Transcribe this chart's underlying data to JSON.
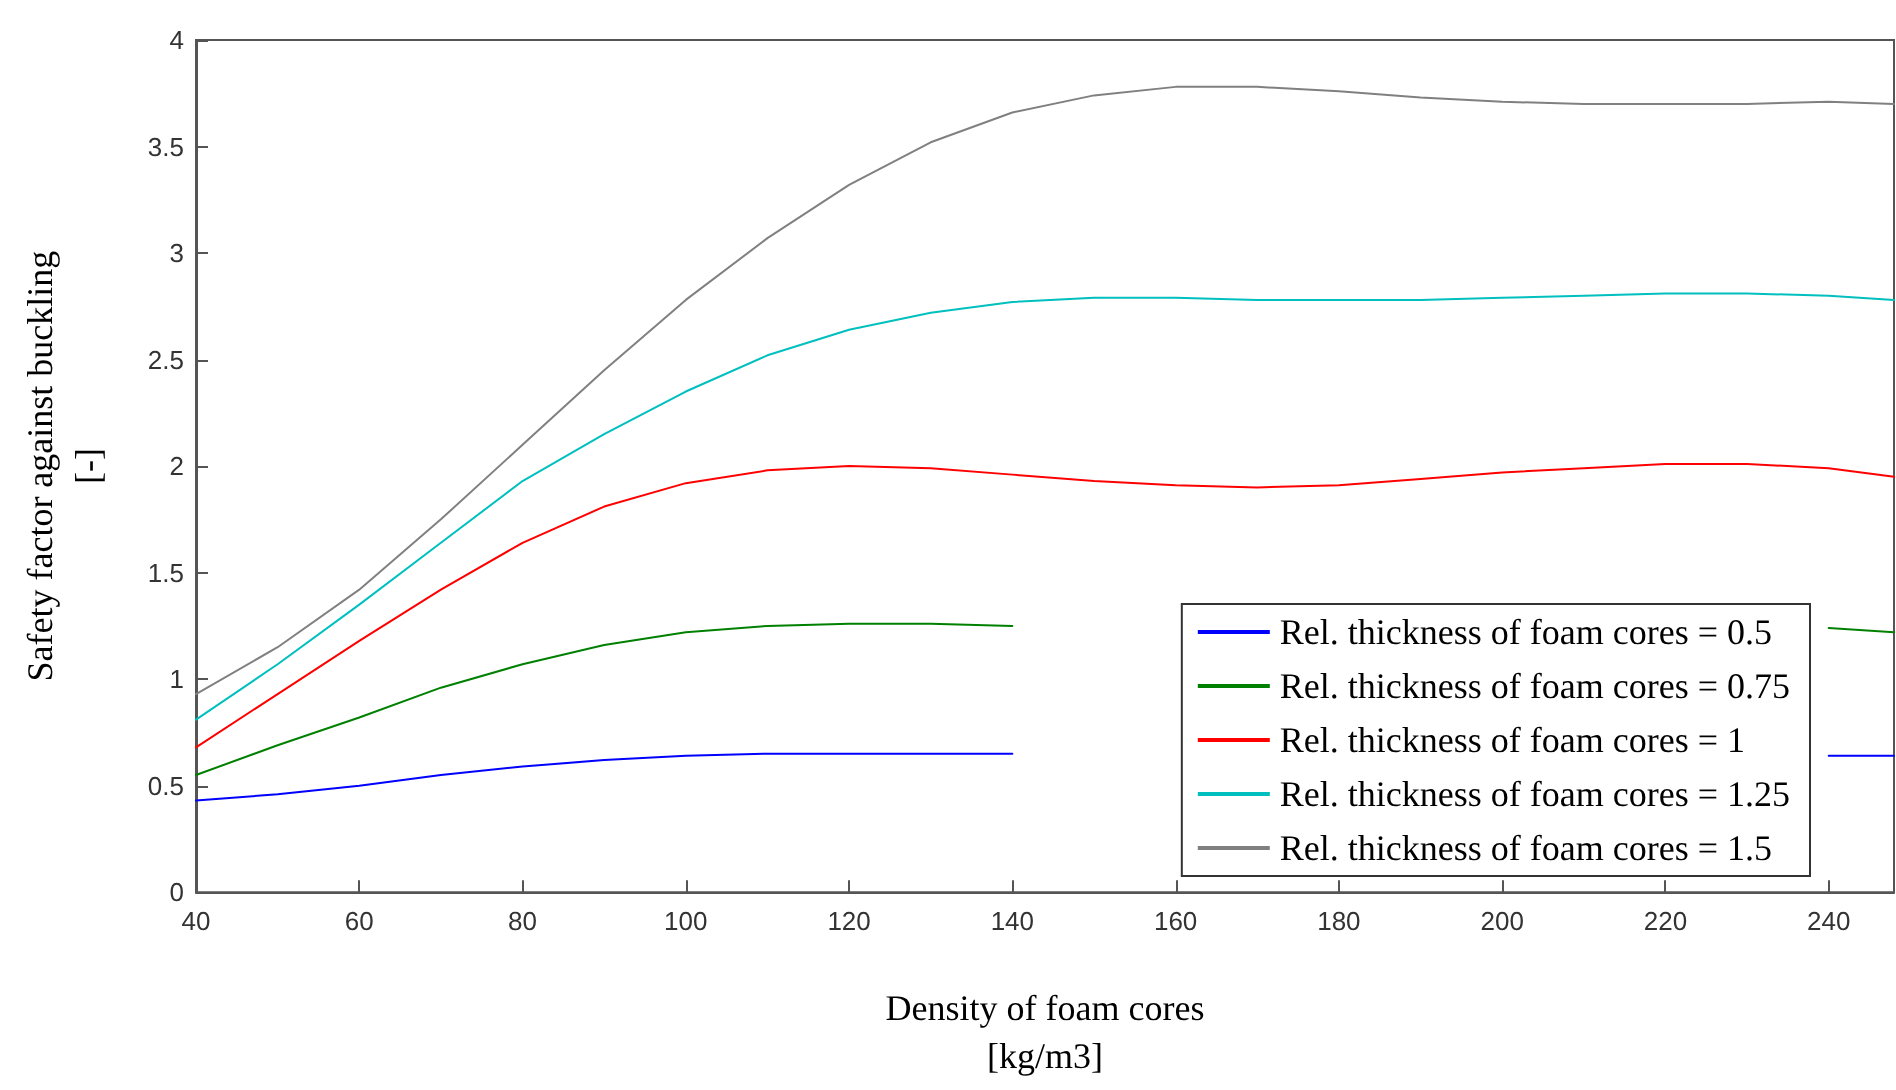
{
  "chart_data": {
    "type": "line",
    "xlabel": "Density of foam cores\n[kg/m3]",
    "ylabel": "Safety factor against buckling\n[-]",
    "x": [
      40,
      50,
      60,
      70,
      80,
      90,
      100,
      110,
      120,
      130,
      140,
      150,
      160,
      170,
      180,
      190,
      200,
      210,
      220,
      230,
      240,
      248
    ],
    "xlim": [
      40,
      248
    ],
    "xticks": [
      40,
      60,
      80,
      100,
      120,
      140,
      160,
      180,
      200,
      220,
      240
    ],
    "ylim": [
      0,
      4
    ],
    "yticks": [
      0,
      0.5,
      1,
      1.5,
      2,
      2.5,
      3,
      3.5,
      4
    ],
    "grid": false,
    "legend": "bottom right",
    "marker": "none",
    "line_style": "solid",
    "series": [
      {
        "name": "Rel. thickness of foam cores = 0.5",
        "color": "#0000ff",
        "values": [
          0.43,
          0.46,
          0.5,
          0.55,
          0.59,
          0.62,
          0.64,
          0.65,
          0.65,
          0.65,
          0.65,
          null,
          null,
          null,
          null,
          null,
          null,
          null,
          null,
          null,
          0.64,
          0.64
        ]
      },
      {
        "name": "Rel. thickness of foam cores = 0.75",
        "color": "#008000",
        "values": [
          0.55,
          0.69,
          0.82,
          0.96,
          1.07,
          1.16,
          1.22,
          1.25,
          1.26,
          1.26,
          1.25,
          null,
          null,
          null,
          null,
          null,
          null,
          null,
          null,
          null,
          1.24,
          1.22
        ]
      },
      {
        "name": "Rel. thickness of foam cores = 1",
        "color": "#ff0000",
        "values": [
          0.68,
          0.93,
          1.18,
          1.42,
          1.64,
          1.81,
          1.92,
          1.98,
          2.0,
          1.99,
          1.96,
          1.93,
          1.91,
          1.9,
          1.91,
          1.94,
          1.97,
          1.99,
          2.01,
          2.01,
          1.99,
          1.95
        ]
      },
      {
        "name": "Rel. thickness of foam cores = 1.25",
        "color": "#00bfbf",
        "values": [
          0.81,
          1.07,
          1.35,
          1.64,
          1.93,
          2.15,
          2.35,
          2.52,
          2.64,
          2.72,
          2.77,
          2.79,
          2.79,
          2.78,
          2.78,
          2.78,
          2.79,
          2.8,
          2.81,
          2.81,
          2.8,
          2.78
        ]
      },
      {
        "name": "Rel. thickness of foam cores = 1.5",
        "color": "#808080",
        "values": [
          0.93,
          1.15,
          1.42,
          1.75,
          2.1,
          2.45,
          2.78,
          3.07,
          3.32,
          3.52,
          3.66,
          3.74,
          3.78,
          3.78,
          3.76,
          3.73,
          3.71,
          3.7,
          3.7,
          3.7,
          3.71,
          3.7
        ]
      }
    ]
  }
}
